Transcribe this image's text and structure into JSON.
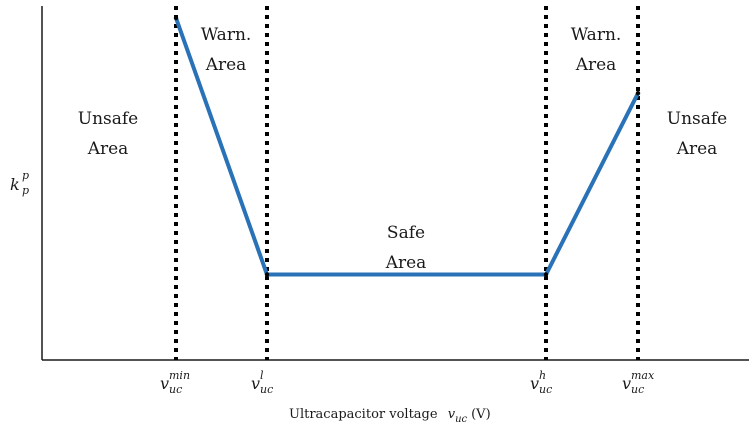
{
  "chart_data": {
    "type": "line",
    "xlabel_text": "Ultracapacitor voltage",
    "xlabel_symbol": "v",
    "xlabel_symbol_sub": "uc",
    "xlabel_unit": "(V)",
    "ylabel_symbol": "k",
    "ylabel_sub": "p",
    "ylabel_sup": "p",
    "thresholds": [
      {
        "symbol": "v",
        "sub": "uc",
        "sup": "min"
      },
      {
        "symbol": "v",
        "sub": "uc",
        "sup": "l"
      },
      {
        "symbol": "v",
        "sub": "uc",
        "sup": "h"
      },
      {
        "symbol": "v",
        "sub": "uc",
        "sup": "max"
      }
    ],
    "regions": [
      {
        "lines": [
          "Unsafe",
          "Area"
        ]
      },
      {
        "lines": [
          "Warn.",
          "Area"
        ]
      },
      {
        "lines": [
          "Safe",
          "Area"
        ]
      },
      {
        "lines": [
          "Warn.",
          "Area"
        ]
      },
      {
        "lines": [
          "Unsafe",
          "Area"
        ]
      }
    ],
    "series": [
      {
        "values": [
          {
            "x": "v_uc^min",
            "y": 1.0
          },
          {
            "x": "v_uc^l",
            "y": 0.25
          },
          {
            "x": "v_uc^h",
            "y": 0.25
          },
          {
            "x": "v_uc^max",
            "y": 0.78
          }
        ]
      }
    ],
    "ylim": [
      0,
      1
    ],
    "grid": false,
    "colors": {
      "line": "#2a72b7",
      "axis": "#1a1a1a",
      "threshold": "#000000"
    }
  }
}
